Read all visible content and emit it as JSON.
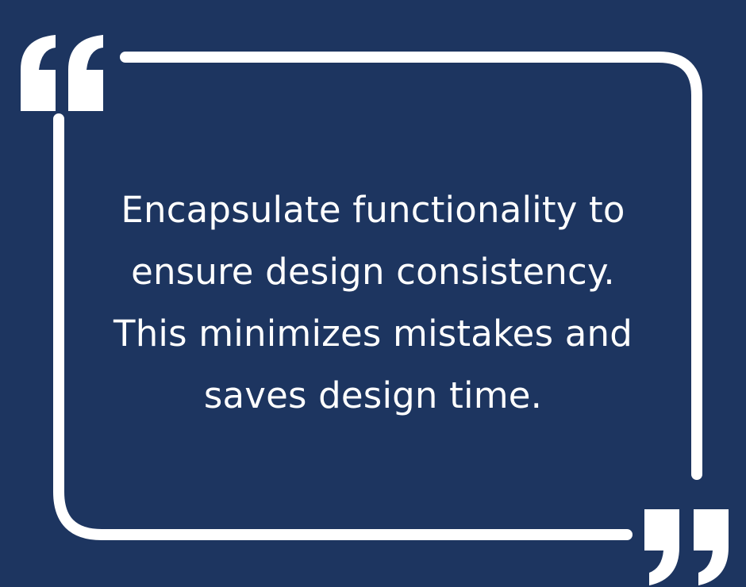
{
  "quote": {
    "lines": [
      "Encapsulate functionality to",
      "ensure design consistency.",
      "This minimizes mistakes and",
      "saves design time."
    ]
  },
  "colors": {
    "background": "#1d3560",
    "frame": "#ffffff",
    "text": "#ffffff"
  },
  "icons": {
    "open_quote": "open-quote-icon",
    "close_quote": "close-quote-icon"
  }
}
